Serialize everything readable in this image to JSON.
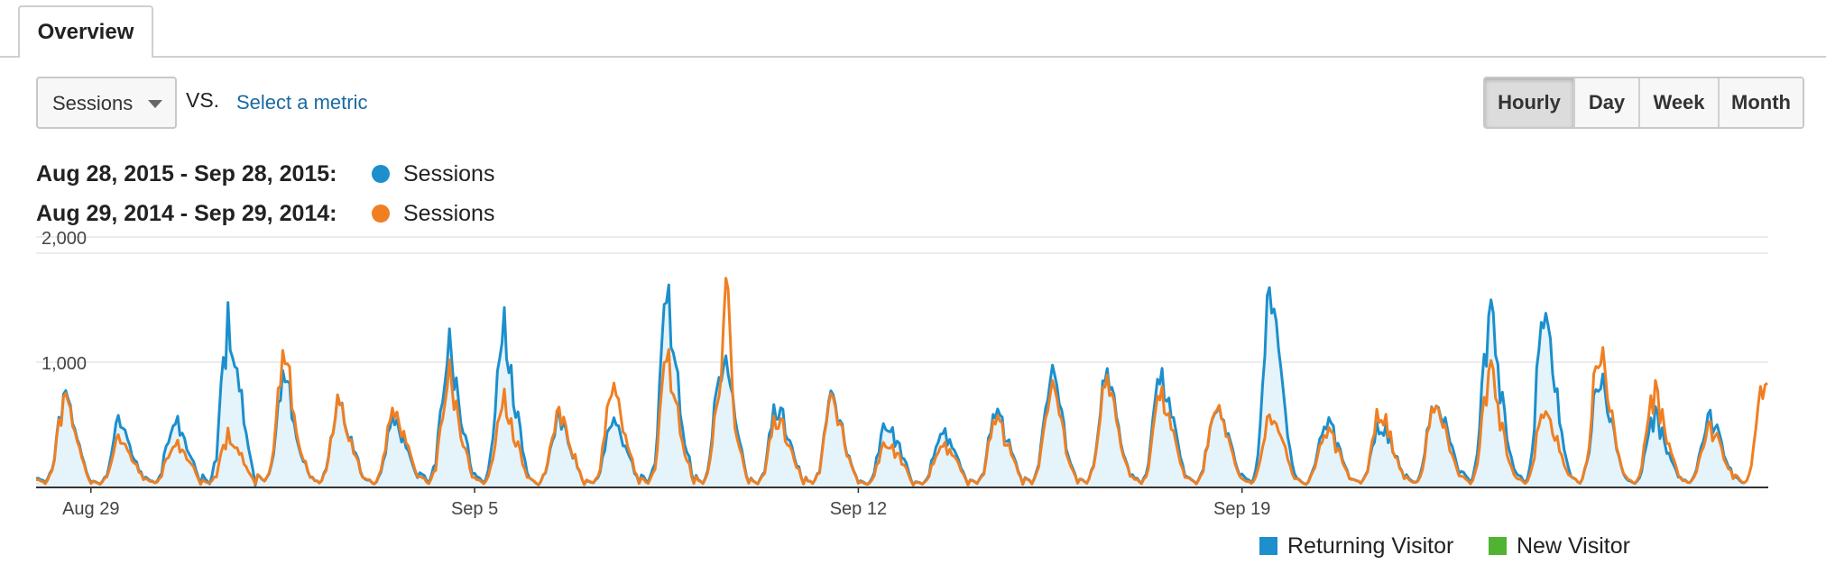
{
  "tabs": {
    "overview": "Overview"
  },
  "controls": {
    "metric": "Sessions",
    "vs": "VS.",
    "select_metric": "Select a metric",
    "periods": [
      "Hourly",
      "Day",
      "Week",
      "Month"
    ],
    "active_period": "Hourly"
  },
  "legend": [
    {
      "range": "Aug 28, 2015 - Sep 28, 2015:",
      "metric": "Sessions",
      "color": "#1c8fcc"
    },
    {
      "range": "Aug 29, 2014 - Sep 29, 2014:",
      "metric": "Sessions",
      "color": "#f07f22"
    }
  ],
  "bottom_legend": [
    {
      "label": "Returning Visitor",
      "color": "#1c8fcc"
    },
    {
      "label": "New Visitor",
      "color": "#50b432"
    }
  ],
  "chart_data": {
    "type": "line",
    "granularity": "hourly",
    "ylim": [
      0,
      2000
    ],
    "yticks": [
      2000,
      1000
    ],
    "ytick_labels": [
      "2,000",
      "1,000"
    ],
    "xtick_labels": [
      {
        "label": "Aug 29",
        "day": 1
      },
      {
        "label": "Sep 5",
        "day": 8
      },
      {
        "label": "Sep 12",
        "day": 15
      },
      {
        "label": "Sep 19",
        "day": 22
      }
    ],
    "x_domain_days": [
      0,
      31.6
    ],
    "grid": true,
    "series": [
      {
        "color": "#1c8fcc",
        "fill": "#e5f3fa",
        "daily_peaks": [
          700,
          520,
          580,
          1310,
          870,
          680,
          540,
          1120,
          1280,
          540,
          520,
          1440,
          1040,
          650,
          720,
          500,
          460,
          590,
          870,
          880,
          850,
          630,
          1600,
          560,
          500,
          710,
          1300,
          1470,
          850,
          560,
          560,
          550
        ],
        "daily_troughs": [
          40,
          20,
          30,
          20,
          40,
          30,
          30,
          40,
          30,
          20,
          30,
          40,
          30,
          30,
          30,
          20,
          20,
          30,
          30,
          30,
          30,
          30,
          30,
          20,
          30,
          30,
          40,
          30,
          30,
          30,
          30,
          30
        ],
        "daily_mid": [
          350,
          280,
          330,
          700,
          450,
          380,
          300,
          560,
          620,
          330,
          330,
          600,
          560,
          380,
          380,
          330,
          300,
          350,
          430,
          450,
          480,
          380,
          600,
          330,
          350,
          480,
          620,
          660,
          500,
          330,
          340,
          330
        ],
        "end_day": 31.2
      },
      {
        "color": "#f07f22",
        "daily_peaks": [
          680,
          380,
          380,
          420,
          1020,
          680,
          600,
          900,
          700,
          580,
          780,
          980,
          860,
          560,
          700,
          350,
          350,
          540,
          760,
          830,
          720,
          640,
          580,
          480,
          610,
          710,
          880,
          640,
          1060,
          740,
          480,
          800
        ],
        "daily_troughs": [
          30,
          20,
          30,
          30,
          40,
          30,
          30,
          30,
          30,
          20,
          30,
          30,
          30,
          30,
          30,
          20,
          20,
          30,
          30,
          30,
          30,
          30,
          30,
          20,
          30,
          30,
          30,
          30,
          30,
          30,
          30,
          30
        ],
        "daily_mid": [
          330,
          250,
          260,
          260,
          480,
          350,
          340,
          420,
          380,
          340,
          380,
          460,
          480,
          340,
          360,
          260,
          260,
          320,
          380,
          420,
          380,
          340,
          330,
          300,
          330,
          380,
          420,
          380,
          520,
          420,
          300,
          420
        ],
        "spikes": [
          {
            "day": 12.6,
            "value": 1800
          }
        ],
        "end_day": 31.6
      }
    ]
  }
}
